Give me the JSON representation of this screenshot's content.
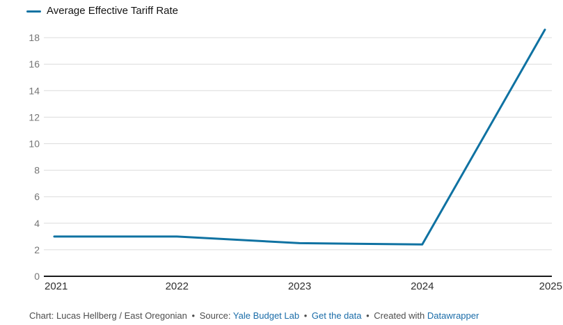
{
  "legend": {
    "label": "Average Effective Tariff Rate"
  },
  "chart_data": {
    "type": "line",
    "x": [
      "2021",
      "2022",
      "2023",
      "2024",
      "2025"
    ],
    "series": [
      {
        "name": "Average Effective Tariff Rate",
        "values": [
          3.0,
          3.0,
          2.5,
          2.4,
          18.6
        ]
      }
    ],
    "title": "",
    "xlabel": "",
    "ylabel": "",
    "ylim": [
      0,
      18
    ],
    "yticks": [
      0,
      2,
      4,
      6,
      8,
      10,
      12,
      14,
      16,
      18
    ],
    "grid": true,
    "legend_position": "top-left"
  },
  "colors": {
    "line": "#0f72a2",
    "grid": "#dcdcdc",
    "baseline": "#1a1a1a",
    "y_tick": "#757575",
    "x_tick": "#2e2e2e",
    "footer_text": "#4d4d4d",
    "link": "#1a6ca8"
  },
  "footer": {
    "byline": "Chart: Lucas Hellberg / East Oregonian",
    "bullet": "•",
    "source_prefix": "Source:",
    "source_link": "Yale Budget Lab",
    "data_link": "Get the data",
    "created_prefix": "Created with",
    "created_link": "Datawrapper"
  }
}
